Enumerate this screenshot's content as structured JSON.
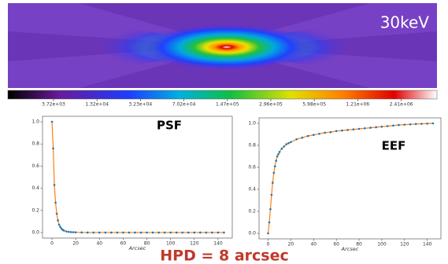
{
  "image": {
    "label": "30keV",
    "colorbar": {
      "ticks": [
        {
          "value": 3720,
          "label": "3.72e+03"
        },
        {
          "value": 13200,
          "label": "1.32e+04"
        },
        {
          "value": 32300,
          "label": "3.23e+04"
        },
        {
          "value": 70200,
          "label": "7.02e+04"
        },
        {
          "value": 147000,
          "label": "1.47e+05"
        },
        {
          "value": 296000,
          "label": "2.96e+05"
        },
        {
          "value": 598000,
          "label": "5.98e+05"
        },
        {
          "value": 1210000,
          "label": "1.21e+06"
        },
        {
          "value": 2410000,
          "label": "2.41e+06"
        }
      ]
    }
  },
  "chart_data": [
    {
      "type": "line",
      "annotation": "PSF",
      "xlabel": "Arcsec",
      "x": [
        0,
        1,
        2,
        3,
        4,
        5,
        6,
        7,
        8,
        9,
        10,
        12,
        14,
        16,
        18,
        20,
        25,
        30,
        35,
        40,
        45,
        50,
        55,
        60,
        65,
        70,
        75,
        80,
        85,
        90,
        95,
        100,
        105,
        110,
        115,
        120,
        125,
        130,
        135,
        140,
        145
      ],
      "series": [
        {
          "color": "#1f77b4",
          "line_color": "#ff7f0e",
          "values": [
            1.0,
            0.76,
            0.43,
            0.27,
            0.17,
            0.11,
            0.07,
            0.05,
            0.035,
            0.025,
            0.018,
            0.01,
            0.006,
            0.004,
            0.003,
            0.002,
            0.001,
            0,
            0,
            0,
            0,
            0,
            0,
            0,
            0,
            0,
            0,
            0,
            0,
            0,
            0,
            0,
            0,
            0,
            0,
            0,
            0,
            0,
            0,
            0,
            0
          ]
        }
      ],
      "xlim": [
        -8,
        152
      ],
      "ylim": [
        -0.05,
        1.05
      ],
      "xticks": [
        0,
        20,
        40,
        60,
        80,
        100,
        120,
        140
      ],
      "yticks": [
        {
          "value": 0,
          "label": "0.0"
        },
        0.2,
        0.4,
        0.6,
        0.8,
        {
          "value": 1,
          "label": "1.0"
        }
      ]
    },
    {
      "type": "line",
      "annotation": "EEF",
      "xlabel": "Arcsec",
      "x": [
        0,
        1,
        2,
        3,
        4,
        5,
        6,
        7,
        8,
        9,
        10,
        12,
        14,
        16,
        18,
        20,
        25,
        30,
        35,
        40,
        45,
        50,
        55,
        60,
        65,
        70,
        75,
        80,
        85,
        90,
        95,
        100,
        105,
        110,
        115,
        120,
        125,
        130,
        135,
        140,
        145
      ],
      "series": [
        {
          "color": "#1f77b4",
          "line_color": "#ff7f0e",
          "values": [
            0.0,
            0.1,
            0.22,
            0.35,
            0.46,
            0.55,
            0.61,
            0.66,
            0.7,
            0.72,
            0.74,
            0.77,
            0.79,
            0.81,
            0.82,
            0.83,
            0.855,
            0.87,
            0.885,
            0.895,
            0.905,
            0.915,
            0.92,
            0.93,
            0.935,
            0.94,
            0.945,
            0.95,
            0.955,
            0.96,
            0.965,
            0.97,
            0.975,
            0.98,
            0.985,
            0.988,
            0.991,
            0.994,
            0.996,
            0.998,
            1.0
          ]
        }
      ],
      "xlim": [
        -8,
        152
      ],
      "ylim": [
        -0.05,
        1.05
      ],
      "xticks": [
        0,
        20,
        40,
        60,
        80,
        100,
        120,
        140
      ],
      "yticks": [
        {
          "value": 0,
          "label": "0.0"
        },
        0.2,
        0.4,
        0.6,
        0.8,
        {
          "value": 1,
          "label": "1.0"
        }
      ]
    }
  ],
  "caption": "HPD = 8 arcsec"
}
